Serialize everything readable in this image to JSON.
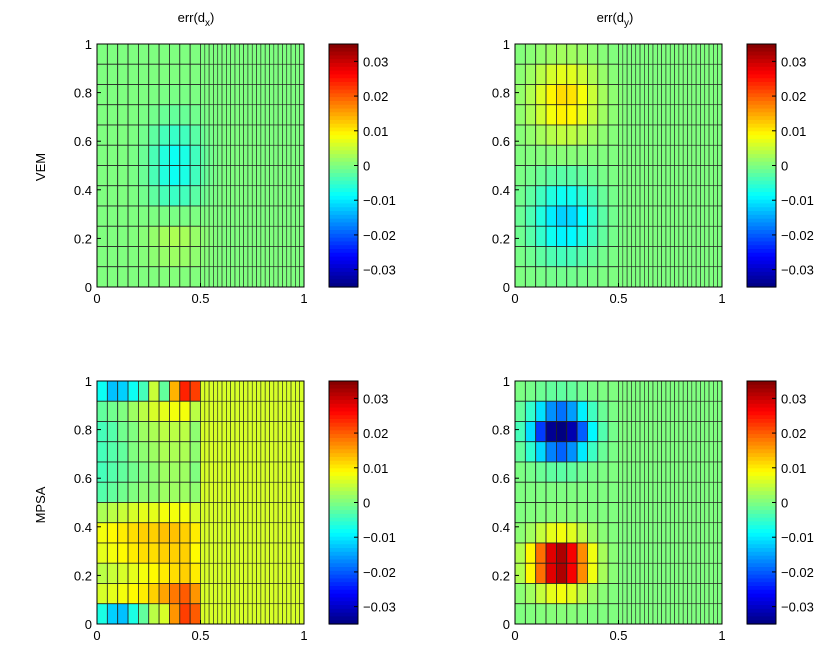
{
  "figure": {
    "column_titles": [
      "err(d",
      "err(d"
    ],
    "column_title_subscripts": [
      "x",
      "y"
    ],
    "column_title_suffix": ")",
    "row_labels": [
      "VEM",
      "MPSA"
    ]
  },
  "chart_data": [
    {
      "type": "heatmap",
      "row": "VEM",
      "title": "err(d_x)",
      "x_ticks": [
        "0",
        "0.5",
        "1"
      ],
      "y_ticks": [
        "0",
        "0.2",
        "0.4",
        "0.6",
        "0.8",
        "1"
      ],
      "xlim": [
        0,
        1
      ],
      "ylim": [
        0,
        1
      ],
      "grid": {
        "coarse_cols": 10,
        "fine_cols": 24,
        "rows": 12,
        "split_x": 0.5
      },
      "field": {
        "kind": "bumps",
        "bumps": [
          {
            "x": 0.38,
            "y": 0.5,
            "sx": 0.12,
            "sy": 0.17,
            "a": -0.0085
          },
          {
            "x": 0.38,
            "y": 0.2,
            "sx": 0.12,
            "sy": 0.1,
            "a": 0.0035
          }
        ]
      },
      "colorbar": {
        "range": [
          -0.035,
          0.035
        ],
        "ticks": [
          "0.03",
          "0.02",
          "0.01",
          "0",
          "−0.01",
          "−0.02",
          "−0.03"
        ]
      }
    },
    {
      "type": "heatmap",
      "row": "VEM",
      "title": "err(d_y)",
      "x_ticks": [
        "0",
        "0.5",
        "1"
      ],
      "y_ticks": [
        "0",
        "0.2",
        "0.4",
        "0.6",
        "0.8",
        "1"
      ],
      "xlim": [
        0,
        1
      ],
      "ylim": [
        0,
        1
      ],
      "grid": {
        "coarse_cols": 10,
        "fine_cols": 24,
        "rows": 12,
        "split_x": 0.5
      },
      "field": {
        "kind": "bumps",
        "bumps": [
          {
            "x": 0.24,
            "y": 0.77,
            "sx": 0.15,
            "sy": 0.15,
            "a": 0.0115
          },
          {
            "x": 0.24,
            "y": 0.28,
            "sx": 0.15,
            "sy": 0.15,
            "a": -0.012
          }
        ]
      },
      "colorbar": {
        "range": [
          -0.035,
          0.035
        ],
        "ticks": [
          "0.03",
          "0.02",
          "0.01",
          "0",
          "−0.01",
          "−0.02",
          "−0.03"
        ]
      }
    },
    {
      "type": "heatmap",
      "row": "MPSA",
      "title": "err(d_x)",
      "x_ticks": [
        "0",
        "0.5",
        "1"
      ],
      "y_ticks": [
        "0",
        "0.2",
        "0.4",
        "0.6",
        "0.8",
        "1"
      ],
      "xlim": [
        0,
        1
      ],
      "ylim": [
        0,
        1
      ],
      "grid": {
        "coarse_cols": 10,
        "fine_cols": 24,
        "rows": 12,
        "split_x": 0.5
      },
      "field": {
        "kind": "mpsa_dx",
        "coarse_values": [
          [
            -0.008,
            -0.013,
            -0.012,
            -0.008,
            -0.004,
            0.005,
            -0.002,
            0.014,
            0.024,
            0.022
          ],
          [
            -0.002,
            -0.001,
            0.0,
            0.002,
            0.004,
            0.006,
            0.007,
            0.008,
            0.008,
            0.004
          ],
          [
            -0.004,
            -0.003,
            -0.001,
            0.0,
            0.002,
            0.003,
            0.004,
            0.004,
            0.004,
            0.001
          ],
          [
            -0.004,
            -0.003,
            -0.002,
            0.0,
            0.001,
            0.002,
            0.003,
            0.003,
            0.003,
            0.001
          ],
          [
            -0.004,
            -0.003,
            -0.002,
            -0.001,
            0.0,
            0.001,
            0.002,
            0.002,
            0.002,
            0.0
          ],
          [
            -0.003,
            -0.002,
            -0.001,
            0.0,
            0.001,
            0.001,
            0.002,
            0.002,
            0.002,
            0.001
          ],
          [
            0.003,
            0.004,
            0.005,
            0.006,
            0.007,
            0.007,
            0.008,
            0.008,
            0.008,
            0.006
          ],
          [
            0.008,
            0.009,
            0.01,
            0.011,
            0.012,
            0.012,
            0.013,
            0.013,
            0.012,
            0.01
          ],
          [
            0.007,
            0.008,
            0.009,
            0.01,
            0.011,
            0.011,
            0.012,
            0.012,
            0.012,
            0.009
          ],
          [
            0.004,
            0.005,
            0.006,
            0.007,
            0.008,
            0.009,
            0.01,
            0.011,
            0.012,
            0.01
          ],
          [
            0.006,
            0.007,
            0.008,
            0.009,
            0.01,
            0.012,
            0.015,
            0.018,
            0.02,
            0.016
          ],
          [
            -0.007,
            -0.012,
            -0.013,
            -0.007,
            -0.002,
            0.004,
            0.006,
            0.016,
            0.022,
            0.02
          ]
        ],
        "fine_value": 0.006
      },
      "colorbar": {
        "range": [
          -0.035,
          0.035
        ],
        "ticks": [
          "0.03",
          "0.02",
          "0.01",
          "0",
          "−0.01",
          "−0.02",
          "−0.03"
        ]
      }
    },
    {
      "type": "heatmap",
      "row": "MPSA",
      "title": "err(d_y)",
      "x_ticks": [
        "0",
        "0.5",
        "1"
      ],
      "y_ticks": [
        "0",
        "0.2",
        "0.4",
        "0.6",
        "0.8",
        "1"
      ],
      "xlim": [
        0,
        1
      ],
      "ylim": [
        0,
        1
      ],
      "grid": {
        "coarse_cols": 10,
        "fine_cols": 24,
        "rows": 12,
        "split_x": 0.5
      },
      "field": {
        "kind": "bumps",
        "fine_value": 0.0,
        "bumps": [
          {
            "x": 0.22,
            "y": 0.79,
            "sx": 0.13,
            "sy": 0.1,
            "a": -0.038
          },
          {
            "x": 0.22,
            "y": 0.25,
            "sx": 0.13,
            "sy": 0.1,
            "a": 0.038
          }
        ]
      },
      "colorbar": {
        "range": [
          -0.035,
          0.035
        ],
        "ticks": [
          "0.03",
          "0.02",
          "0.01",
          "0",
          "−0.01",
          "−0.02",
          "−0.03"
        ]
      }
    }
  ]
}
